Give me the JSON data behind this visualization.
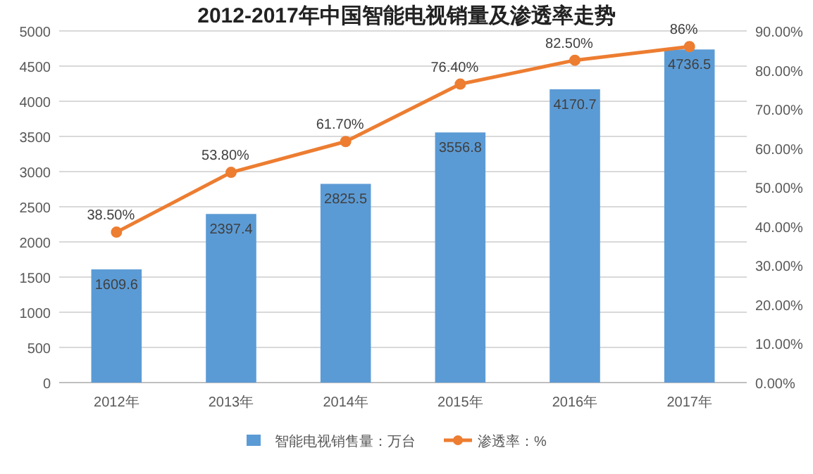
{
  "chart_data": {
    "type": "bar",
    "title": "2012-2017年中国智能电视销量及渗透率走势",
    "categories": [
      "2012年",
      "2013年",
      "2014年",
      "2015年",
      "2016年",
      "2017年"
    ],
    "series": [
      {
        "name": "智能电视销售量：万台",
        "color": "#5b9bd5",
        "values": [
          1609.6,
          2397.4,
          2825.5,
          3556.8,
          4170.7,
          4736.5
        ],
        "value_labels": [
          "1609.6",
          "2397.4",
          "2825.5",
          "3556.8",
          "4170.7",
          "4736.5"
        ]
      },
      {
        "name": "渗透率：%",
        "type": "line",
        "axis": "y2",
        "color": "#ed7d31",
        "marker": "circle",
        "values": [
          38.5,
          53.8,
          61.7,
          76.4,
          82.5,
          86
        ],
        "value_labels": [
          "38.50%",
          "53.80%",
          "61.70%",
          "76.40%",
          "82.50%",
          "86%"
        ]
      }
    ],
    "ylim": [
      0,
      5000
    ],
    "yticks": [
      0,
      500,
      1000,
      1500,
      2000,
      2500,
      3000,
      3500,
      4000,
      4500,
      5000
    ],
    "y2lim": [
      0,
      90
    ],
    "y2ticks": [
      {
        "value": 0,
        "label": "0.00%"
      },
      {
        "value": 10,
        "label": "10.00%"
      },
      {
        "value": 20,
        "label": "20.00%"
      },
      {
        "value": 30,
        "label": "30.00%"
      },
      {
        "value": 40,
        "label": "40.00%"
      },
      {
        "value": 50,
        "label": "50.00%"
      },
      {
        "value": 60,
        "label": "60.00%"
      },
      {
        "value": 70,
        "label": "70.00%"
      },
      {
        "value": 80,
        "label": "80.00%"
      },
      {
        "value": 90,
        "label": "90.00%"
      }
    ],
    "grid": "y",
    "legend": "bottom"
  }
}
